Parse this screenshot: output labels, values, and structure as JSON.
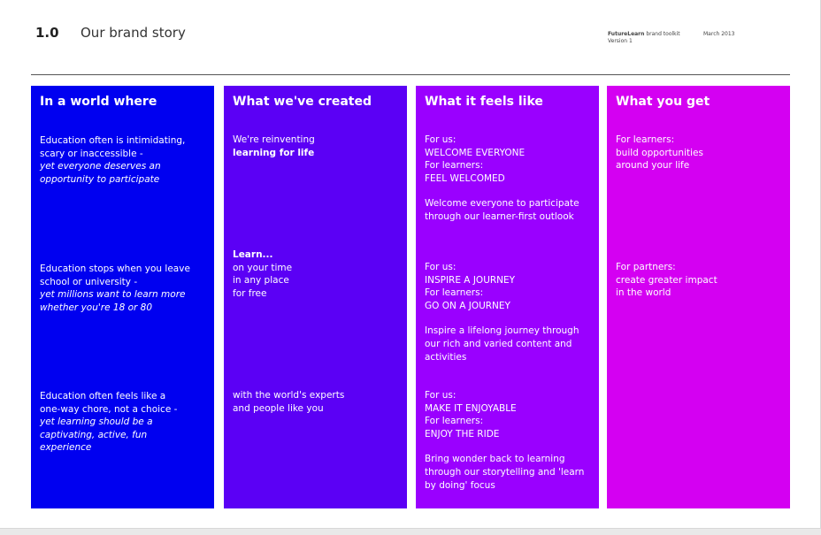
{
  "header": {
    "section_number": "1.0",
    "section_title": "Our brand story",
    "toolkit_brand": "FutureLearn",
    "toolkit_label": " brand toolkit",
    "version": "Version 1",
    "date": "March 2013"
  },
  "colors": {
    "col1": "#0000f0",
    "col2": "#5b00f5",
    "col3": "#9a00ff",
    "col4": "#d400f2"
  },
  "columns": [
    {
      "heading": "In a world where",
      "blocks": [
        {
          "lines": [
            "Education often is intimidating,",
            "scary or inaccessible -"
          ],
          "italic": [
            "yet everyone deserves an",
            "opportunity to participate"
          ]
        },
        {
          "lines": [
            "Education stops when you leave",
            "school or university -"
          ],
          "italic": [
            "yet millions want to learn more",
            "whether you're 18 or 80"
          ]
        },
        {
          "lines": [
            "Education often feels like a",
            "one-way chore, not a choice -"
          ],
          "italic": [
            "yet learning should be a",
            "captivating, active, fun",
            "experience"
          ]
        }
      ]
    },
    {
      "heading": "What we've created",
      "blocks": [
        {
          "lines": [
            "We're reinventing"
          ],
          "bold": [
            "learning for life"
          ]
        },
        {
          "bold_first": "Learn...",
          "lines": [
            "on your time",
            "in any place",
            "for free"
          ]
        },
        {
          "lines": [
            "with the world's experts",
            "and people like you"
          ]
        }
      ]
    },
    {
      "heading": "What it feels like",
      "blocks": [
        {
          "lines": [
            "For us:",
            "WELCOME EVERYONE",
            "For learners:",
            "FEEL WELCOMED"
          ],
          "desc": [
            "Welcome everyone to participate",
            "through our learner-first outlook"
          ]
        },
        {
          "lines": [
            "For us:",
            "INSPIRE A JOURNEY",
            "For learners:",
            "GO ON A JOURNEY"
          ],
          "desc": [
            "Inspire a lifelong journey through",
            "our rich and varied content and",
            "activities"
          ]
        },
        {
          "lines": [
            "For us:",
            "MAKE IT ENJOYABLE",
            "For learners:",
            "ENJOY THE RIDE"
          ],
          "desc": [
            "Bring wonder back to learning",
            "through our storytelling and 'learn",
            "by doing' focus"
          ]
        }
      ]
    },
    {
      "heading": "What you get",
      "blocks": [
        {
          "lines": [
            "For learners:",
            "build opportunities",
            "around your life"
          ]
        },
        {
          "lines": [
            "For partners:",
            "create greater impact",
            "in the world"
          ]
        }
      ]
    }
  ]
}
